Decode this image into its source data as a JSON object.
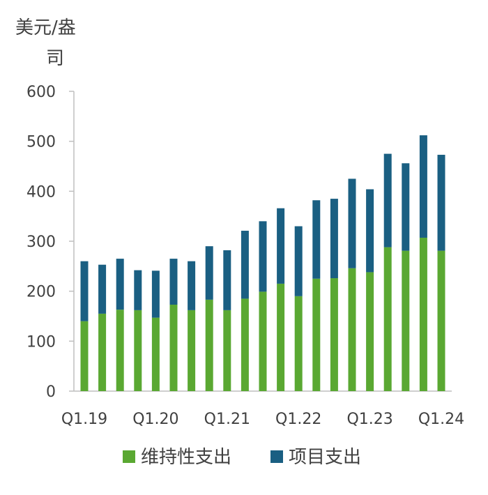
{
  "chart_data": {
    "type": "bar",
    "stacked": true,
    "ylabel_line1": "美元/盎",
    "ylabel_line2": "司",
    "ylim": [
      0,
      600
    ],
    "yticks": [
      0,
      100,
      200,
      300,
      400,
      500,
      600
    ],
    "yticks_text": [
      "0",
      "100",
      "200",
      "300",
      "400",
      "500",
      "600"
    ],
    "categories": [
      "Q1.19",
      "Q2.19",
      "Q3.19",
      "Q4.19",
      "Q1.20",
      "Q2.20",
      "Q3.20",
      "Q4.20",
      "Q1.21",
      "Q2.21",
      "Q3.21",
      "Q4.21",
      "Q1.22",
      "Q2.22",
      "Q3.22",
      "Q4.22",
      "Q1.23",
      "Q2.23",
      "Q3.23",
      "Q4.23",
      "Q1.24"
    ],
    "xtick_labels": [
      {
        "index": 0,
        "text": "Q1.19"
      },
      {
        "index": 4,
        "text": "Q1.20"
      },
      {
        "index": 8,
        "text": "Q1.21"
      },
      {
        "index": 12,
        "text": "Q1.22"
      },
      {
        "index": 16,
        "text": "Q1.23"
      },
      {
        "index": 20,
        "text": "Q1.24"
      }
    ],
    "series": [
      {
        "name": "维持性支出",
        "color": "#5aa832",
        "values": [
          140,
          155,
          163,
          162,
          147,
          173,
          162,
          183,
          162,
          185,
          199,
          215,
          190,
          225,
          226,
          246,
          238,
          288,
          281,
          307,
          281
        ]
      },
      {
        "name": "项目支出",
        "color": "#1a5f82",
        "values": [
          120,
          98,
          102,
          80,
          94,
          92,
          98,
          107,
          120,
          136,
          141,
          151,
          140,
          157,
          159,
          179,
          166,
          187,
          175,
          205,
          192
        ]
      }
    ],
    "legend_position": "bottom",
    "grid": false
  }
}
